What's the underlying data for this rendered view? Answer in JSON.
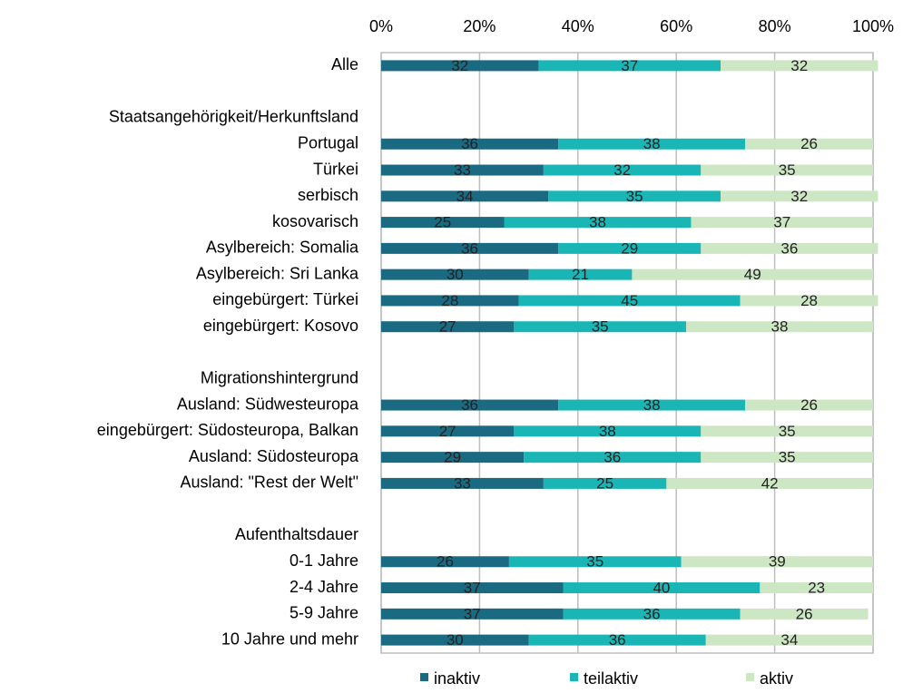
{
  "chart_data": {
    "type": "stacked-bar-horizontal",
    "categories": [
      "Alle",
      null,
      "Staatsangehörigkeit/Herkunftsland",
      "Portugal",
      "Türkei",
      "serbisch",
      "kosovarisch",
      "Asylbereich: Somalia",
      "Asylbereich: Sri Lanka",
      "eingebürgert: Türkei",
      "eingebürgert: Kosovo",
      null,
      "Migrationshintergrund",
      "Ausland: Südwesteuropa",
      "eingebürgert: Südosteuropa, Balkan",
      "Ausland: Südosteuropa",
      "Ausland: \"Rest der Welt\"",
      null,
      "Aufenthaltsdauer",
      "0-1 Jahre",
      "2-4 Jahre",
      "5-9 Jahre",
      "10 Jahre und mehr"
    ],
    "series": [
      {
        "name": "inaktiv",
        "color": "#1a6a82",
        "values": [
          32,
          null,
          null,
          36,
          33,
          34,
          25,
          36,
          30,
          28,
          27,
          null,
          null,
          36,
          27,
          29,
          33,
          null,
          null,
          26,
          37,
          37,
          30
        ]
      },
      {
        "name": "teilaktiv",
        "color": "#1ab5b5",
        "values": [
          37,
          null,
          null,
          38,
          32,
          35,
          38,
          29,
          21,
          45,
          35,
          null,
          null,
          38,
          38,
          36,
          25,
          null,
          null,
          35,
          40,
          36,
          36
        ]
      },
      {
        "name": "aktiv",
        "color": "#cde6c4",
        "values": [
          32,
          null,
          null,
          26,
          35,
          32,
          37,
          36,
          49,
          28,
          38,
          null,
          null,
          26,
          35,
          35,
          42,
          null,
          null,
          39,
          23,
          26,
          34
        ]
      }
    ],
    "xlim": [
      0,
      100
    ],
    "xticks": [
      {
        "value": 0,
        "label": "0%"
      },
      {
        "value": 20,
        "label": "20%"
      },
      {
        "value": 40,
        "label": "40%"
      },
      {
        "value": 60,
        "label": "60%"
      },
      {
        "value": 80,
        "label": "80%"
      },
      {
        "value": 100,
        "label": "100%"
      }
    ],
    "grid": true,
    "legend": "bottom"
  }
}
